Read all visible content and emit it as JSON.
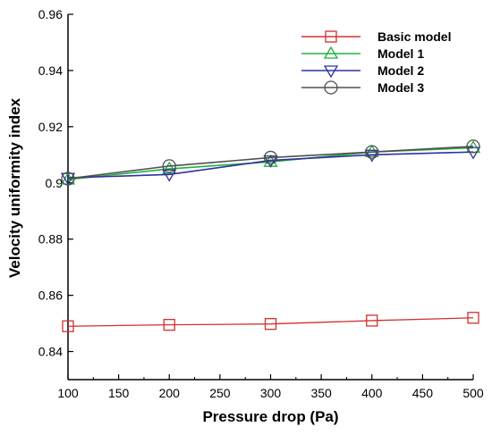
{
  "chart_data": {
    "type": "line",
    "xlabel": "Pressure drop (Pa)",
    "ylabel": "Velocity uniformity index",
    "xlim": [
      100,
      500
    ],
    "ylim": [
      0.83,
      0.96
    ],
    "xticks": [
      100,
      150,
      200,
      250,
      300,
      350,
      400,
      450,
      500
    ],
    "yticks": [
      0.84,
      0.86,
      0.88,
      0.9,
      0.92,
      0.94,
      0.96
    ],
    "ytick_labels": [
      "0.84",
      "0.86",
      "0.88",
      "0.9",
      "0.92",
      "0.94",
      "0.96"
    ],
    "grid": false,
    "legend_position": "top-right",
    "x": [
      100,
      200,
      300,
      400,
      500
    ],
    "series": [
      {
        "name": "Basic model",
        "color": "#d03030",
        "marker": "square",
        "values": [
          0.849,
          0.8495,
          0.8498,
          0.851,
          0.852
        ]
      },
      {
        "name": "Model 1",
        "color": "#20b040",
        "marker": "triangle-up",
        "values": [
          0.9012,
          0.905,
          0.9075,
          0.911,
          0.9125
        ]
      },
      {
        "name": "Model 2",
        "color": "#3030a0",
        "marker": "triangle-down",
        "values": [
          0.9018,
          0.903,
          0.908,
          0.91,
          0.911
        ]
      },
      {
        "name": "Model 3",
        "color": "#505050",
        "marker": "circle",
        "values": [
          0.9015,
          0.906,
          0.909,
          0.911,
          0.913
        ]
      }
    ]
  }
}
